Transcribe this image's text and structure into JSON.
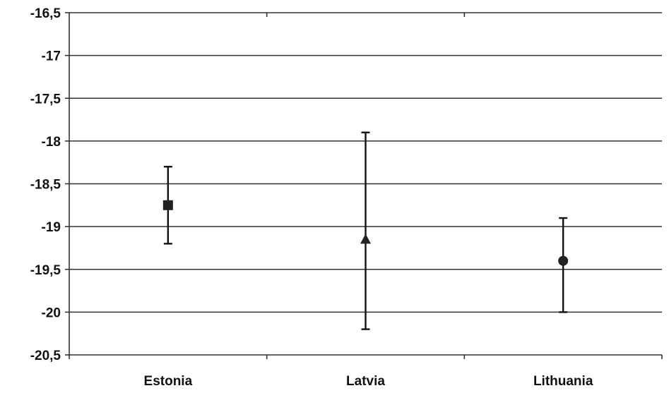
{
  "chart_data": {
    "type": "scatter",
    "title": "",
    "xlabel": "",
    "ylabel": "",
    "ylim": [
      -20.5,
      -16.5
    ],
    "y_ticks": [
      "-16,5",
      "-17",
      "-17,5",
      "-18",
      "-18,5",
      "-19",
      "-19,5",
      "-20",
      "-20,5"
    ],
    "y_tick_values": [
      -16.5,
      -17,
      -17.5,
      -18,
      -18.5,
      -19,
      -19.5,
      -20,
      -20.5
    ],
    "categories": [
      "Estonia",
      "Latvia",
      "Lithuania"
    ],
    "points": [
      {
        "category": "Estonia",
        "value": -18.75,
        "low": -19.2,
        "high": -18.3,
        "marker": "square"
      },
      {
        "category": "Latvia",
        "value": -19.15,
        "low": -20.2,
        "high": -17.9,
        "marker": "triangle"
      },
      {
        "category": "Lithuania",
        "value": -19.4,
        "low": -20.0,
        "high": -18.9,
        "marker": "circle"
      }
    ],
    "grid": true,
    "legend": "none"
  }
}
